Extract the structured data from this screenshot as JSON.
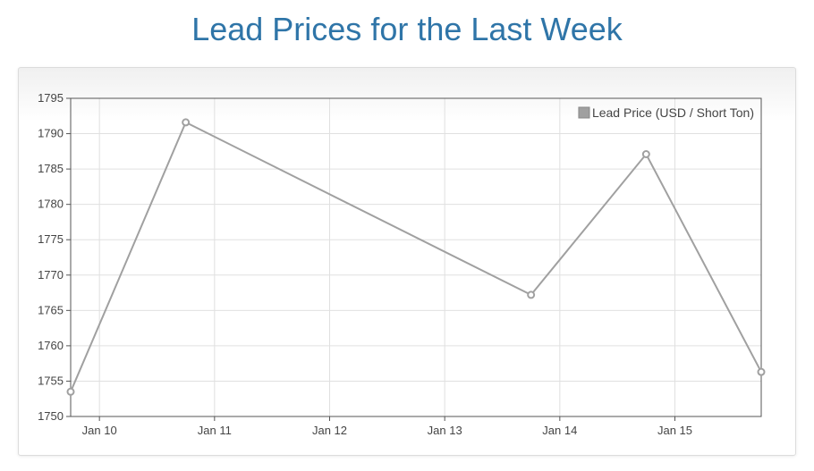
{
  "page": {
    "title": "Lead Prices for the Last Week"
  },
  "colors": {
    "title": "#2f75a8",
    "series": "#a0a0a0",
    "grid": "#e0e0e0",
    "axis": "#555555"
  },
  "chart_data": {
    "type": "line",
    "title": "Lead Prices for the Last Week",
    "xlabel": "",
    "ylabel": "",
    "x_tick_labels": [
      "Jan 10",
      "Jan 11",
      "Jan 12",
      "Jan 13",
      "Jan 14",
      "Jan 15"
    ],
    "x_tick_days": [
      10,
      11,
      12,
      13,
      14,
      15
    ],
    "xlim": [
      9.75,
      15.75
    ],
    "ylim": [
      1750,
      1795
    ],
    "y_ticks": [
      1750,
      1755,
      1760,
      1765,
      1770,
      1775,
      1780,
      1785,
      1790,
      1795
    ],
    "grid": true,
    "legend_position": "top-right",
    "series": [
      {
        "name": "Lead Price (USD / Short Ton)",
        "x": [
          9.75,
          10.75,
          13.75,
          14.75,
          15.75
        ],
        "values": [
          1753.5,
          1791.6,
          1767.2,
          1787.1,
          1756.3
        ]
      }
    ]
  }
}
